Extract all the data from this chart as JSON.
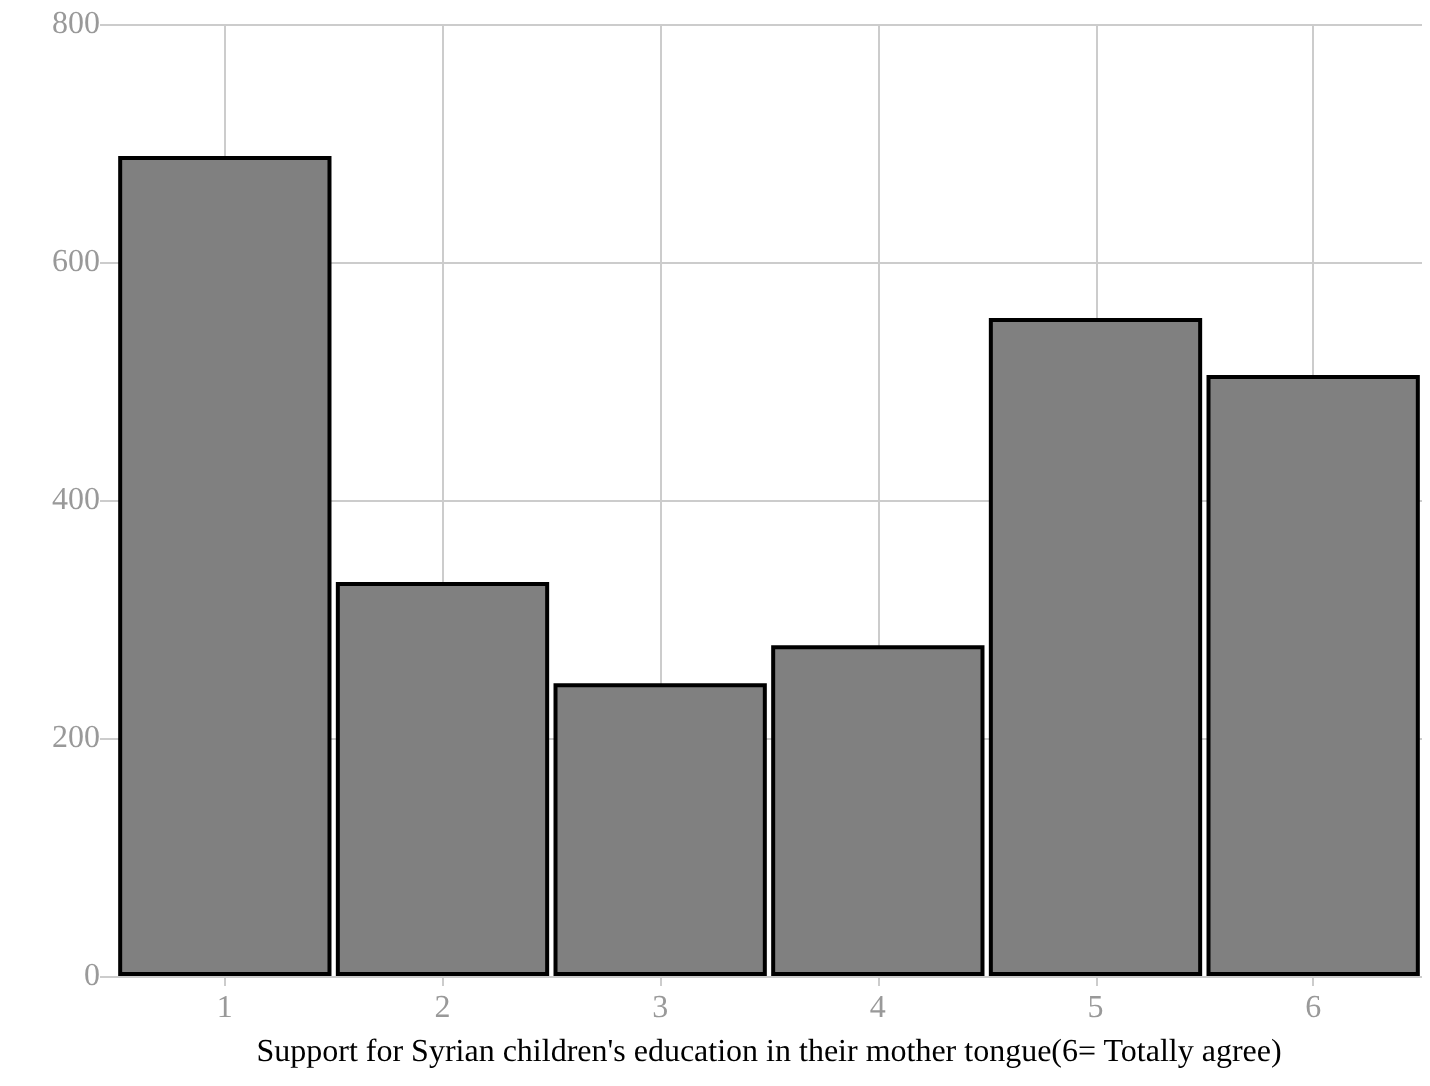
{
  "chart_data": {
    "type": "bar",
    "xlabel": "Support for Syrian children's education in their mother tongue(6= Totally agree)",
    "categories": [
      "1",
      "2",
      "3",
      "4",
      "5",
      "6"
    ],
    "values": [
      689,
      331,
      246,
      278,
      553,
      505
    ],
    "color": "#808080",
    "ylim": [
      0,
      800
    ],
    "yticks": [
      0,
      200,
      400,
      600,
      800
    ],
    "grid": true
  }
}
